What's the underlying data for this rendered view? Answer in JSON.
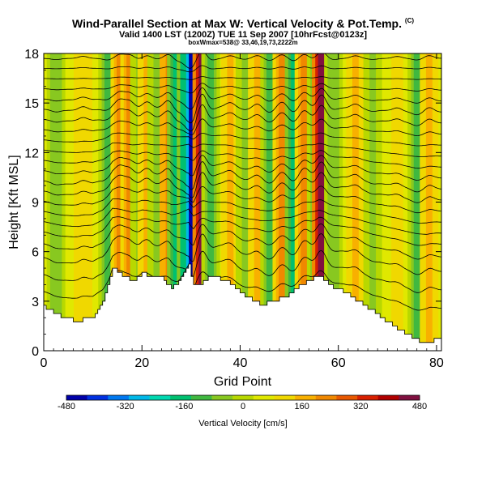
{
  "header": {
    "title": "Wind-Parallel Section at Max W: Vertical Velocity & Pot.Temp.",
    "title_mark": "(C)",
    "valid_line": "Valid 1400 LST (1200Z) TUE 11 Sep 2007 [10hrFcst@0123z]",
    "box_line": "boxWmax=538@ 33,46,19,73,2222m"
  },
  "chart_data": {
    "type": "heatmap",
    "title": "Wind-Parallel Section at Max W: Vertical Velocity & Pot.Temp.",
    "xlabel": "Grid Point",
    "ylabel": "Height [Kft MSL]",
    "xlim": [
      0,
      81
    ],
    "ylim": [
      0,
      18
    ],
    "x_ticks": [
      0,
      20,
      40,
      60,
      80
    ],
    "y_ticks": [
      0,
      3,
      6,
      9,
      12,
      15,
      18
    ],
    "colorbar": {
      "label": "Vertical Velocity [cm/s]",
      "ticks": [
        -480,
        -320,
        -160,
        0,
        160,
        320,
        480
      ],
      "range": [
        -480,
        480
      ],
      "colors": [
        "#0000a8",
        "#0030e0",
        "#0078f0",
        "#00b8e8",
        "#00d8b0",
        "#00c070",
        "#40b840",
        "#88c820",
        "#b8d800",
        "#e0e800",
        "#f0d800",
        "#f8b000",
        "#f08800",
        "#e85800",
        "#d82000",
        "#b00000",
        "#801040"
      ]
    },
    "w_background": 60,
    "w_columns": [
      {
        "x": 2.5,
        "w": -70
      },
      {
        "x": 8,
        "w": 120
      },
      {
        "x": 13,
        "w": -90
      },
      {
        "x": 15.5,
        "w": 220
      },
      {
        "x": 17.5,
        "w": 200
      },
      {
        "x": 19.5,
        "w": -60
      },
      {
        "x": 21,
        "w": 170
      },
      {
        "x": 23,
        "w": -40
      },
      {
        "x": 25.5,
        "w": 250
      },
      {
        "x": 27,
        "w": -150
      },
      {
        "x": 29,
        "w": -250
      },
      {
        "x": 30.2,
        "w": -440
      },
      {
        "x": 32.2,
        "w": 480
      },
      {
        "x": 34,
        "w": -120
      },
      {
        "x": 38,
        "w": 150
      },
      {
        "x": 41,
        "w": -50
      },
      {
        "x": 43.5,
        "w": 160
      },
      {
        "x": 46,
        "w": -120
      },
      {
        "x": 48.5,
        "w": 210
      },
      {
        "x": 51,
        "w": -150
      },
      {
        "x": 53,
        "w": 230
      },
      {
        "x": 55.5,
        "w": -100
      },
      {
        "x": 56.5,
        "w": 440
      },
      {
        "x": 59,
        "w": -70
      },
      {
        "x": 63.5,
        "w": 150
      },
      {
        "x": 67,
        "w": -60
      },
      {
        "x": 72,
        "w": 110
      },
      {
        "x": 76,
        "w": -90
      },
      {
        "x": 78.5,
        "w": 160
      }
    ],
    "terrain": [
      {
        "x": 0,
        "h": 2.7
      },
      {
        "x": 4,
        "h": 2.0
      },
      {
        "x": 7,
        "h": 1.8
      },
      {
        "x": 10,
        "h": 2.1
      },
      {
        "x": 12,
        "h": 3.0
      },
      {
        "x": 14,
        "h": 5.0
      },
      {
        "x": 16,
        "h": 4.6
      },
      {
        "x": 18,
        "h": 4.2
      },
      {
        "x": 20,
        "h": 4.7
      },
      {
        "x": 22,
        "h": 4.4
      },
      {
        "x": 24,
        "h": 4.4
      },
      {
        "x": 26,
        "h": 3.8
      },
      {
        "x": 28,
        "h": 4.4
      },
      {
        "x": 29.5,
        "h": 5.2
      },
      {
        "x": 30.5,
        "h": 3.9
      },
      {
        "x": 32,
        "h": 4.1
      },
      {
        "x": 34,
        "h": 4.5
      },
      {
        "x": 37,
        "h": 4.3
      },
      {
        "x": 40,
        "h": 3.5
      },
      {
        "x": 44,
        "h": 2.8
      },
      {
        "x": 47,
        "h": 3.0
      },
      {
        "x": 50,
        "h": 3.4
      },
      {
        "x": 52,
        "h": 3.9
      },
      {
        "x": 54,
        "h": 4.3
      },
      {
        "x": 56,
        "h": 4.5
      },
      {
        "x": 58,
        "h": 4.0
      },
      {
        "x": 61,
        "h": 3.6
      },
      {
        "x": 64,
        "h": 3.0
      },
      {
        "x": 68,
        "h": 2.2
      },
      {
        "x": 72,
        "h": 1.3
      },
      {
        "x": 75,
        "h": 0.8
      },
      {
        "x": 78,
        "h": 0.4
      },
      {
        "x": 80,
        "h": 0.7
      }
    ],
    "contour_levels_kft": [
      4.0,
      5.0,
      6.0,
      6.8,
      7.5,
      8.1,
      8.7,
      9.3,
      9.9,
      10.5,
      11.1,
      11.7,
      12.3,
      12.9,
      13.5,
      14.1,
      14.7,
      15.3,
      15.9,
      16.5,
      17.1,
      17.7
    ]
  }
}
